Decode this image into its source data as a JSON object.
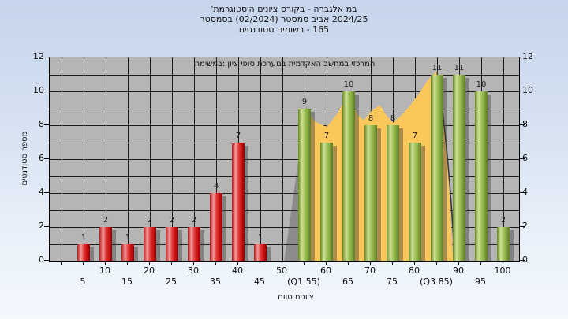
{
  "title": {
    "line1": "'היסטוגרמת‎ ציונים‎ בקורס‎ - אלגברה‎ במ‎",
    "line2": "בסמסטר‎ (02/2024) סמסטר‎ אביב‎ 2024/25",
    "line3": "סטודנטים‎ רשומים‎ - 165"
  },
  "annotation": "במשימה:‎ ציון‎ סופי‎ במערכת‎ האקדמית‎ במחשב‎ המרכזי",
  "axes": {
    "y_label": "מספר סטודנטים",
    "x_label": "טווח‎ ציונים",
    "y_ticks": [
      0,
      2,
      4,
      6,
      8,
      10,
      12
    ],
    "x_ticks_row1": [
      {
        "x": 10,
        "label": "10"
      },
      {
        "x": 20,
        "label": "20"
      },
      {
        "x": 30,
        "label": "30"
      },
      {
        "x": 40,
        "label": "40"
      },
      {
        "x": 50,
        "label": "50"
      },
      {
        "x": 60,
        "label": "60"
      },
      {
        "x": 70,
        "label": "70"
      },
      {
        "x": 80,
        "label": "80"
      },
      {
        "x": 90,
        "label": "90"
      },
      {
        "x": 100,
        "label": "100"
      }
    ],
    "x_ticks_row2": [
      {
        "x": 5,
        "label": "5"
      },
      {
        "x": 15,
        "label": "15"
      },
      {
        "x": 25,
        "label": "25"
      },
      {
        "x": 35,
        "label": "35"
      },
      {
        "x": 45,
        "label": "45"
      },
      {
        "x": 55,
        "label": "(Q1 55)"
      },
      {
        "x": 65,
        "label": "65"
      },
      {
        "x": 75,
        "label": "75"
      },
      {
        "x": 85,
        "label": "(Q3 85)"
      },
      {
        "x": 95,
        "label": "95"
      }
    ]
  },
  "chart_data": {
    "type": "bar",
    "title": "היסטוגרמת ציונים בקורס - אלגברה במ'",
    "subtitle": "בסמסטר (02/2024) סמסטר אביב 2024/25",
    "students_registered": 165,
    "xlabel": "טווח ציונים",
    "ylabel": "מספר סטודנטים",
    "xlim": [
      0,
      105
    ],
    "ylim": [
      0,
      12
    ],
    "grid": true,
    "series": [
      {
        "name": "grades-below-50",
        "color": "#e03535",
        "x": [
          5,
          10,
          15,
          20,
          25,
          30,
          35,
          40,
          45
        ],
        "values": [
          1,
          2,
          1,
          2,
          2,
          2,
          4,
          7,
          1
        ]
      },
      {
        "name": "grades-50-and-above",
        "color": "#9cbf54",
        "x": [
          55,
          60,
          65,
          70,
          75,
          80,
          85,
          90,
          95,
          100
        ],
        "values": [
          9,
          7,
          10,
          8,
          8,
          7,
          11,
          11,
          10,
          2
        ]
      }
    ],
    "area_overlay": {
      "name": "q1-q3-smoothed-distribution-area",
      "color": "#fcc75a",
      "q1": 55,
      "q3": 85,
      "points": [
        [
          55,
          9
        ],
        [
          57.5,
          8.2
        ],
        [
          60,
          7.9
        ],
        [
          62.5,
          8.7
        ],
        [
          65,
          10
        ],
        [
          67,
          8.6
        ],
        [
          68.5,
          8.3
        ],
        [
          70,
          8.8
        ],
        [
          72,
          9.2
        ],
        [
          73.5,
          8.6
        ],
        [
          75,
          8.15
        ],
        [
          77,
          8.6
        ],
        [
          79,
          9.2
        ],
        [
          81,
          9.9
        ],
        [
          83,
          10.7
        ],
        [
          85,
          11.2
        ],
        [
          86,
          10.4
        ],
        [
          87,
          7.2
        ],
        [
          88,
          3.2
        ],
        [
          88.6,
          0
        ]
      ]
    }
  },
  "colors": {
    "plot_bg": "#b5b5b5",
    "page_bg_top": "#c6d5ec",
    "page_bg_bottom": "#f4f8fd",
    "bar_red": "#e03535",
    "bar_green": "#9cbf54",
    "area_yellow": "#fcc75a",
    "grid_line": "#1c1c1c",
    "text": "#111111"
  }
}
